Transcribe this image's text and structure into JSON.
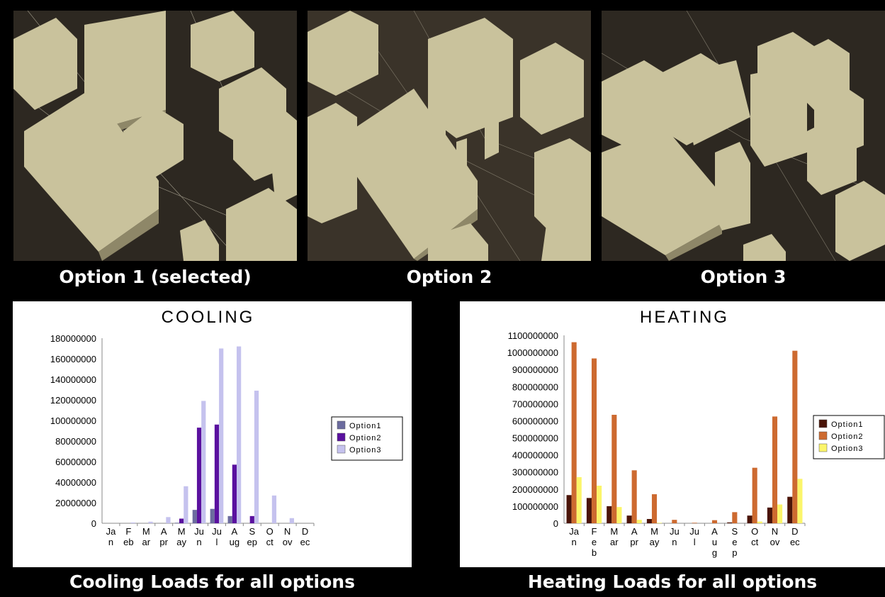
{
  "renders": [
    {
      "caption": "Option 1 (selected)"
    },
    {
      "caption": "Option 2"
    },
    {
      "caption": "Option 3"
    }
  ],
  "render_colors": {
    "building": "#c9c29c",
    "building_side": "#8e8768",
    "ground": "#2d2821",
    "lines": "#d8d2bc"
  },
  "charts_captions": {
    "cooling": "Cooling Loads for all options",
    "heating": "Heating Loads for all options"
  },
  "chart_data": [
    {
      "type": "bar",
      "title": "COOLING",
      "categories": [
        [
          "Ja",
          "n"
        ],
        [
          "F",
          "eb"
        ],
        [
          "M",
          "ar"
        ],
        [
          "A",
          "pr"
        ],
        [
          "M",
          "ay"
        ],
        [
          "Ju",
          "n"
        ],
        [
          "Ju",
          "l"
        ],
        [
          "A",
          "ug"
        ],
        [
          "S",
          "ep"
        ],
        [
          "O",
          "ct"
        ],
        [
          "N",
          "ov"
        ],
        [
          "D",
          "ec"
        ]
      ],
      "ylim": [
        0,
        180000000
      ],
      "yticks": [
        "0",
        "20000000",
        "40000000",
        "60000000",
        "80000000",
        "100000000",
        "120000000",
        "140000000",
        "160000000",
        "180000000"
      ],
      "series": [
        {
          "name": "Option1",
          "color": "#6b6b9e",
          "values": [
            0,
            0,
            0,
            0,
            500000,
            13000000,
            14000000,
            7000000,
            0,
            0,
            0,
            0
          ]
        },
        {
          "name": "Option2",
          "color": "#5a119f",
          "values": [
            0,
            0,
            0,
            0,
            4500000,
            93000000,
            96000000,
            57000000,
            7000000,
            0,
            0,
            0
          ]
        },
        {
          "name": "Option3",
          "color": "#c5c2ee",
          "values": [
            0,
            800000,
            1500000,
            6000000,
            36000000,
            119000000,
            170000000,
            172000000,
            129000000,
            27000000,
            5000000,
            0
          ]
        }
      ],
      "legend": "right"
    },
    {
      "type": "bar",
      "title": "HEATING",
      "categories": [
        [
          "Ja",
          "n"
        ],
        [
          "F",
          "e",
          "b"
        ],
        [
          "M",
          "ar"
        ],
        [
          "A",
          "pr"
        ],
        [
          "M",
          "ay"
        ],
        [
          "Ju",
          "n"
        ],
        [
          "Ju",
          "l"
        ],
        [
          "A",
          "u",
          "g"
        ],
        [
          "S",
          "e",
          "p"
        ],
        [
          "O",
          "ct"
        ],
        [
          "N",
          "ov"
        ],
        [
          "D",
          "ec"
        ]
      ],
      "ylim": [
        0,
        1100000000
      ],
      "yticks": [
        "0",
        "100000000",
        "200000000",
        "300000000",
        "400000000",
        "500000000",
        "600000000",
        "700000000",
        "800000000",
        "900000000",
        "1000000000",
        "1100000000"
      ],
      "series": [
        {
          "name": "Option1",
          "color": "#4a1408",
          "values": [
            165000000,
            148000000,
            100000000,
            45000000,
            25000000,
            0,
            0,
            0,
            5000000,
            45000000,
            92000000,
            155000000
          ]
        },
        {
          "name": "Option2",
          "color": "#cd6a30",
          "values": [
            1060000000,
            965000000,
            635000000,
            310000000,
            170000000,
            20000000,
            3000000,
            18000000,
            65000000,
            325000000,
            625000000,
            1010000000
          ]
        },
        {
          "name": "Option3",
          "color": "#fbf56a",
          "values": [
            270000000,
            220000000,
            95000000,
            20000000,
            3000000,
            0,
            0,
            0,
            0,
            10000000,
            110000000,
            260000000
          ]
        }
      ],
      "legend": "right"
    }
  ]
}
